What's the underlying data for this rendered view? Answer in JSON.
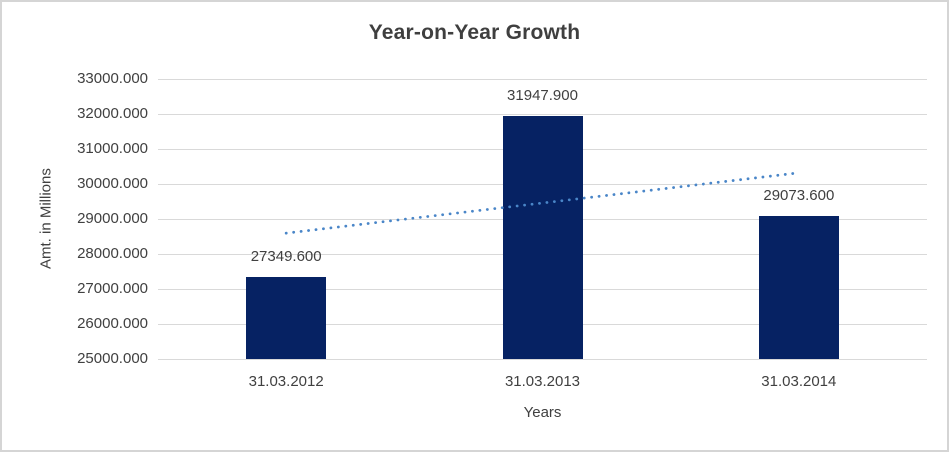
{
  "chart_data": {
    "type": "bar",
    "title": "Year-on-Year Growth",
    "xlabel": "Years",
    "ylabel": "Amt. in Millions",
    "categories": [
      "31.03.2012",
      "31.03.2013",
      "31.03.2014"
    ],
    "values": [
      27349.6,
      31947.9,
      29073.6
    ],
    "data_labels": [
      "27349.600",
      "31947.900",
      "29073.600"
    ],
    "ylim": [
      25000,
      33000
    ],
    "y_tick_step": 1000,
    "y_tick_labels": [
      "33000.000",
      "32000.000",
      "31000.000",
      "30000.000",
      "29000.000",
      "28000.000",
      "27000.000",
      "26000.000",
      "25000.000"
    ],
    "grid": true,
    "legend": "none",
    "colors": {
      "bar": "#062263",
      "trendline": "#4A86C8",
      "gridline": "#D9D9D9",
      "text": "#404040",
      "title": "#3F3F3F"
    },
    "trendline": {
      "type": "linear",
      "style": "dotted"
    }
  }
}
